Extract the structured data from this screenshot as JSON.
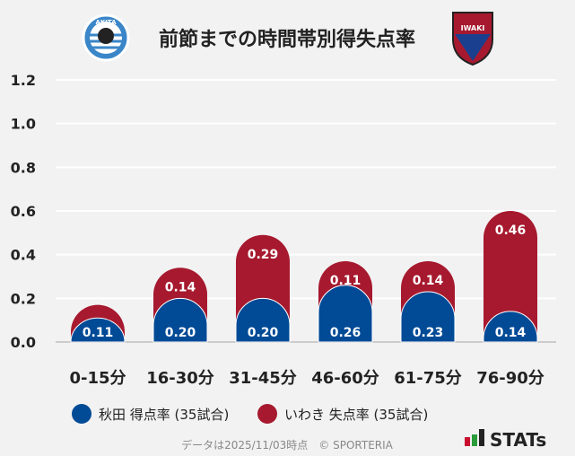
{
  "header": {
    "title": "前節までの時間帯別得失点率",
    "left_logo": "AKITA BLAU BLITZ",
    "right_logo": "IWAKI FC"
  },
  "colors": {
    "akita": "#004a96",
    "iwaki": "#a6192e",
    "background": "#f2f2f2",
    "grid": "#ffffff"
  },
  "chart_data": {
    "type": "bar",
    "stacked": true,
    "title": "前節までの時間帯別得失点率",
    "categories": [
      "0-15分",
      "16-30分",
      "31-45分",
      "46-60分",
      "61-75分",
      "76-90分"
    ],
    "series": [
      {
        "name": "秋田 得点率 (35試合)",
        "color": "#004a96",
        "values": [
          0.11,
          0.2,
          0.2,
          0.26,
          0.23,
          0.14
        ],
        "labels": [
          "0.11",
          "0.20",
          "0.20",
          "0.26",
          "0.23",
          "0.14"
        ]
      },
      {
        "name": "いわき 失点率 (35試合)",
        "color": "#a6192e",
        "values": [
          0.06,
          0.14,
          0.29,
          0.11,
          0.14,
          0.46
        ],
        "labels": [
          "",
          "0.14",
          "0.29",
          "0.11",
          "0.14",
          "0.46"
        ]
      }
    ],
    "yticks": [
      "0.0",
      "0.2",
      "0.4",
      "0.6",
      "0.8",
      "1.0",
      "1.2"
    ],
    "ylim": [
      0,
      1.2
    ],
    "grid": true,
    "legend_position": "bottom"
  },
  "footer": {
    "note": "データは2025/11/03時点　© SPORTERIA",
    "brand": "STATs"
  }
}
